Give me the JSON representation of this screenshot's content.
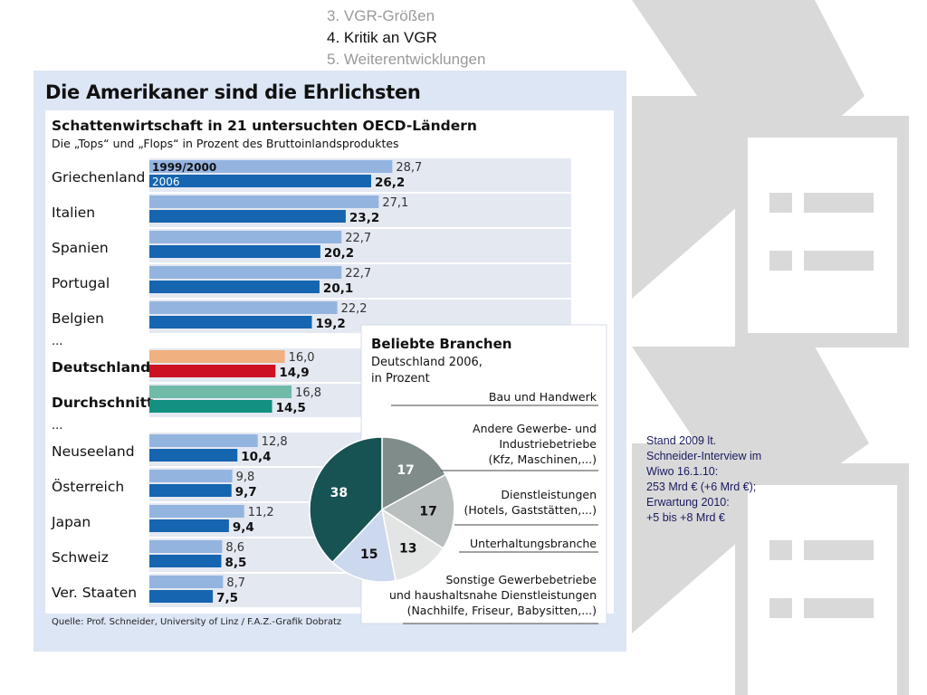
{
  "agenda": {
    "items": [
      {
        "label": "3. VGR-Größen",
        "active": false
      },
      {
        "label": "4. Kritik an VGR",
        "active": true
      },
      {
        "label": "5. Weiterentwicklungen",
        "active": false
      }
    ]
  },
  "note": {
    "lines": [
      "Stand 2009 lt.",
      "Schneider-Interview im",
      "Wiwo 16.1.10:",
      "253 Mrd € (+6 Mrd €);",
      "Erwartung 2010:",
      "+5 bis +8 Mrd €"
    ],
    "color": "#1a1a60"
  },
  "graphic": {
    "title": "Die Amerikaner sind die Ehrlichsten",
    "source": "Quelle: Prof. Schneider, University of Linz / F.A.Z.-Grafik Dobratz"
  },
  "chart_data": [
    {
      "type": "bar",
      "orientation": "horizontal",
      "title": "Schattenwirtschaft in 21 untersuchten OECD-Ländern",
      "subtitle": "Die „Tops“ und „Flops“ in Prozent des Bruttoinlandsproduktes",
      "categories": [
        "Griechenland",
        "Italien",
        "Spanien",
        "Portugal",
        "Belgien",
        "...",
        "Deutschland",
        "Durchschnitt",
        "...",
        "Neuseeland",
        "Österreich",
        "Japan",
        "Schweiz",
        "Ver. Staaten"
      ],
      "category_bold": [
        false,
        false,
        false,
        false,
        false,
        false,
        true,
        true,
        false,
        false,
        false,
        false,
        false,
        false
      ],
      "series": [
        {
          "name": "1999/2000",
          "values": [
            28.7,
            27.1,
            22.7,
            22.7,
            22.2,
            null,
            16.0,
            16.8,
            null,
            12.8,
            9.8,
            11.2,
            8.6,
            8.7
          ],
          "labels": [
            "28,7",
            "27,1",
            "22,7",
            "22,7",
            "22,2",
            "",
            "16,0",
            "16,8",
            "",
            "12,8",
            "9,8",
            "11,2",
            "8,6",
            "8,7"
          ]
        },
        {
          "name": "2006",
          "values": [
            26.2,
            23.2,
            20.2,
            20.1,
            19.2,
            null,
            14.9,
            14.5,
            null,
            10.4,
            9.7,
            9.4,
            8.5,
            7.5
          ],
          "labels": [
            "26,2",
            "23,2",
            "20,2",
            "20,1",
            "19,2",
            "",
            "14,9",
            "14,5",
            "",
            "10,4",
            "9,7",
            "9,4",
            "8,5",
            "7,5"
          ]
        }
      ],
      "highlight_colors": {
        "Deutschland": [
          "#f0b080",
          "#cc1122"
        ],
        "Durchschnitt": [
          "#6fbba8",
          "#139080"
        ]
      },
      "colors": [
        "#94b4e0",
        "#1565b0"
      ],
      "grid": false
    },
    {
      "type": "pie",
      "title": "Beliebte Branchen",
      "subtitle_lines": [
        "Deutschland 2006,",
        "in Prozent"
      ],
      "slices": [
        {
          "value": 17,
          "label": "17",
          "name": "Bau und Handwerk",
          "name_lines": [
            "Bau und Handwerk"
          ],
          "color": "#7f8c8a"
        },
        {
          "value": 17,
          "label": "17",
          "name": "Andere Gewerbe- und Industriebetriebe (Kfz, Maschinen,...)",
          "name_lines": [
            "Andere Gewerbe- und",
            "Industriebetriebe",
            "(Kfz, Maschinen,...)"
          ],
          "color": "#b9bfbe"
        },
        {
          "value": 13,
          "label": "13",
          "name": "Dienstleistungen (Hotels, Gaststätten,...)",
          "name_lines": [
            "Dienstleistungen",
            "(Hotels, Gaststätten,...)"
          ],
          "color": "#e3e5e5"
        },
        {
          "value": 15,
          "label": "15",
          "name": "Unterhaltungsbranche",
          "name_lines": [
            "Unterhaltungsbranche"
          ],
          "color": "#ccd8ee"
        },
        {
          "value": 38,
          "label": "38",
          "name": "Sonstige Gewerbebetriebe und haushaltsnahe Dienstleistungen (Nachhilfe, Friseur, Babysitten,...)",
          "name_lines": [
            "Sonstige Gewerbebetriebe",
            "und haushaltsnahe Dienstleistungen",
            "(Nachhilfe, Friseur, Babysitten,...)"
          ],
          "color": "#175353"
        }
      ]
    }
  ]
}
